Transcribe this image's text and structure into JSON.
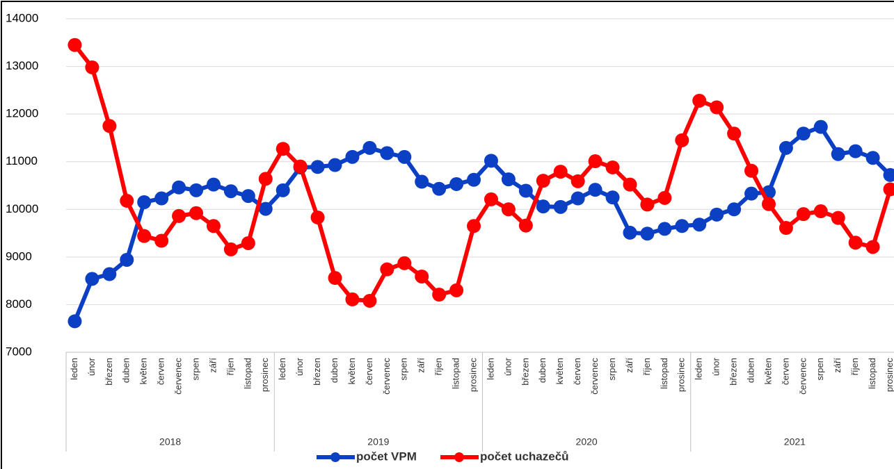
{
  "chart_data": {
    "type": "line",
    "categories": [
      "leden",
      "únor",
      "březen",
      "duben",
      "květen",
      "červen",
      "červenec",
      "srpen",
      "září",
      "říjen",
      "listopad",
      "prosinec",
      "leden",
      "únor",
      "březen",
      "duben",
      "květen",
      "červen",
      "červenec",
      "srpen",
      "září",
      "říjen",
      "listopad",
      "prosinec",
      "leden",
      "únor",
      "březen",
      "duben",
      "květen",
      "červen",
      "červenec",
      "srpen",
      "září",
      "říjen",
      "listopad",
      "prosinec",
      "leden",
      "únor",
      "březen",
      "duben",
      "květen",
      "červen",
      "červenec",
      "srpen",
      "září",
      "říjen",
      "listopad",
      "prosinec"
    ],
    "groups": [
      "2018",
      "2019",
      "2020",
      "2021"
    ],
    "series": [
      {
        "name": "počet VPM",
        "color": "#0b3fc4",
        "values": [
          7650,
          8540,
          8640,
          8940,
          10150,
          10230,
          10460,
          10400,
          10520,
          10380,
          10280,
          10010,
          10400,
          10880,
          10890,
          10930,
          11100,
          11290,
          11180,
          11100,
          10580,
          10430,
          10530,
          10620,
          11020,
          10630,
          10390,
          10060,
          10050,
          10230,
          10410,
          10250,
          9510,
          9490,
          9590,
          9650,
          9680,
          9890,
          10000,
          10330,
          10360,
          11290,
          11590,
          11730,
          11160,
          11220,
          11080,
          10720
        ]
      },
      {
        "name": "počet uchazečů",
        "color": "#ff0000",
        "values": [
          13450,
          12980,
          11750,
          10180,
          9440,
          9340,
          9860,
          9920,
          9650,
          9160,
          9290,
          10640,
          11270,
          10900,
          9830,
          8560,
          8110,
          8080,
          8740,
          8870,
          8590,
          8210,
          8300,
          9650,
          10210,
          10000,
          9660,
          10600,
          10790,
          10590,
          11010,
          10880,
          10520,
          10100,
          10240,
          11450,
          12280,
          12140,
          11590,
          10810,
          10110,
          9610,
          9900,
          9960,
          9820,
          9300,
          9210,
          10420
        ]
      }
    ],
    "ylim": [
      7000,
      14000
    ],
    "yticks": [
      7000,
      8000,
      9000,
      10000,
      11000,
      12000,
      13000,
      14000
    ],
    "grid": true,
    "legend": "bottom"
  }
}
